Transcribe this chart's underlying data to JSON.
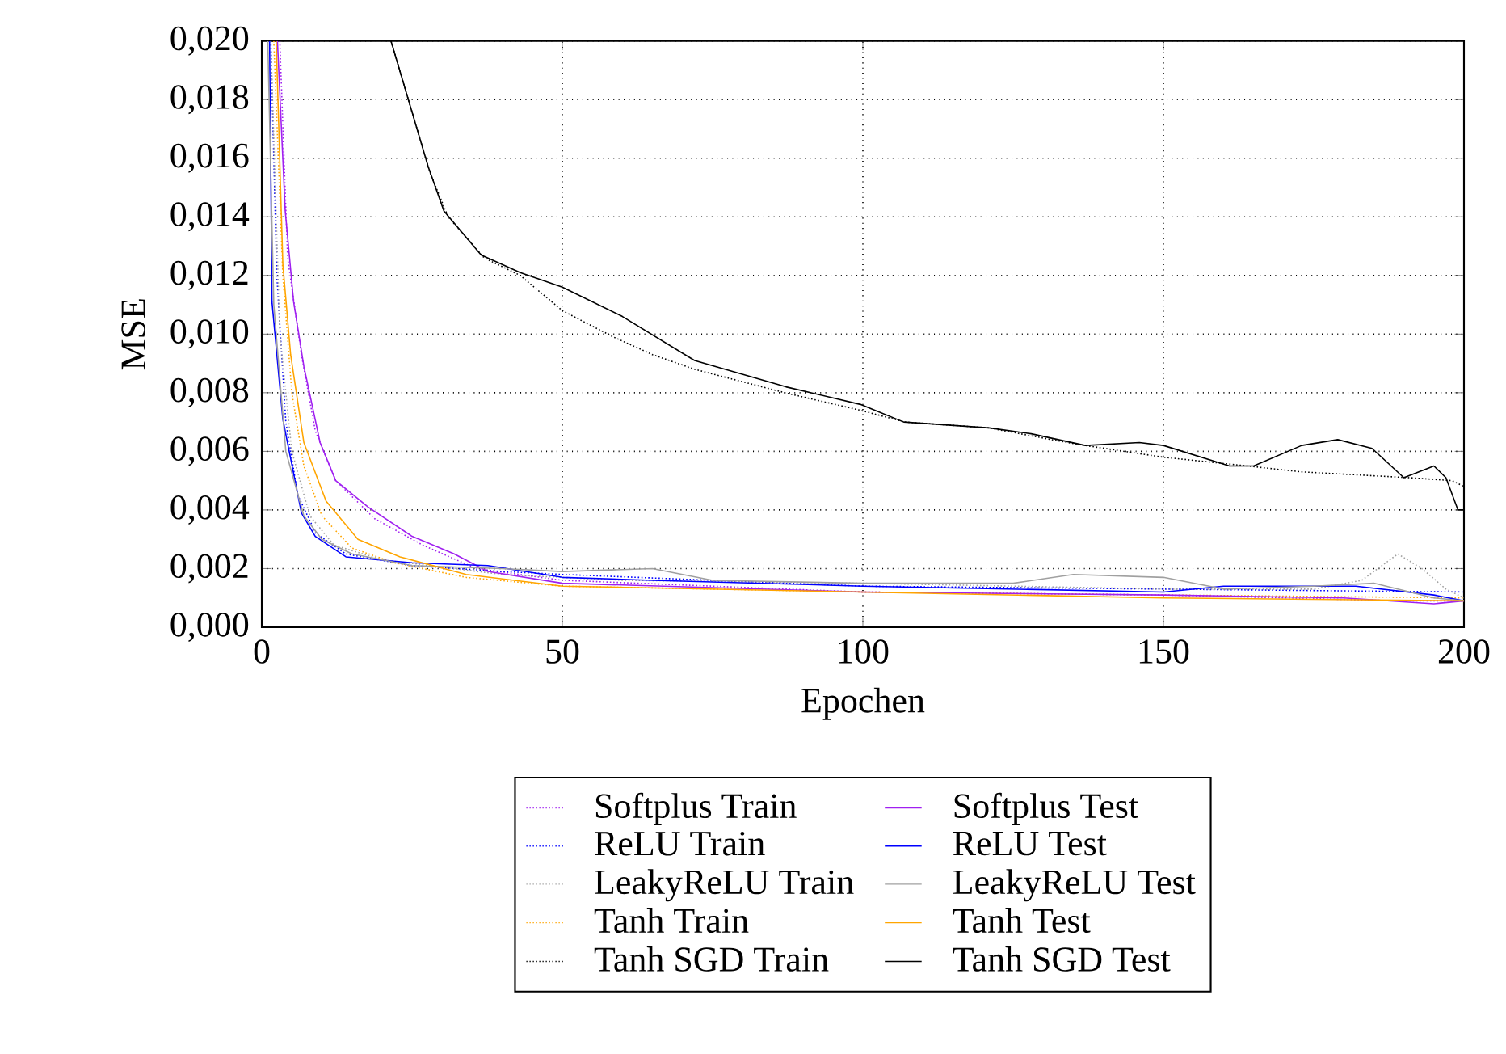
{
  "chart_data": {
    "type": "line",
    "xlabel": "Epochen",
    "ylabel": "MSE",
    "xlim": [
      0,
      200
    ],
    "ylim": [
      0,
      0.02
    ],
    "xticks": [
      0,
      50,
      100,
      150,
      200
    ],
    "yticks": [
      {
        "value": 0,
        "label": "0,000"
      },
      {
        "value": 0.002,
        "label": "0,002"
      },
      {
        "value": 0.004,
        "label": "0,004"
      },
      {
        "value": 0.006,
        "label": "0,006"
      },
      {
        "value": 0.008,
        "label": "0,008"
      },
      {
        "value": 0.01,
        "label": "0,010"
      },
      {
        "value": 0.012,
        "label": "0,012"
      },
      {
        "value": 0.014,
        "label": "0,014"
      },
      {
        "value": 0.016,
        "label": "0,016"
      },
      {
        "value": 0.018,
        "label": "0,018"
      },
      {
        "value": 0.02,
        "label": "0,020"
      }
    ],
    "grid": true,
    "legend": "bottom",
    "marker": "none",
    "series": [
      {
        "name": "Softplus Train",
        "color": "#a020f0",
        "line_style": "dotted",
        "x": [
          3,
          4.3,
          6.6,
          8.9,
          12.3,
          18.8,
          26.8,
          35.7,
          50,
          100,
          150,
          190,
          200
        ],
        "values": [
          0.02,
          0.0126,
          0.0093,
          0.0067,
          0.005,
          0.0037,
          0.0028,
          0.002,
          0.0016,
          0.0012,
          0.0011,
          0.0009,
          0.0009
        ]
      },
      {
        "name": "ReLU Train",
        "color": "#0000ff",
        "line_style": "dotted",
        "x": [
          1.5,
          2.5,
          4,
          6,
          9,
          14,
          25,
          40,
          50,
          100,
          150,
          200
        ],
        "values": [
          0.02,
          0.012,
          0.007,
          0.0045,
          0.0032,
          0.0025,
          0.0021,
          0.0019,
          0.0018,
          0.0014,
          0.0013,
          0.0012
        ]
      },
      {
        "name": "LeakyReLU Train",
        "color": "#a0a0a0",
        "line_style": "dotted",
        "x": [
          1.5,
          3,
          5,
          8,
          12,
          20,
          40,
          60,
          100,
          150,
          175,
          183,
          189,
          193,
          197,
          200
        ],
        "values": [
          0.02,
          0.01,
          0.006,
          0.0038,
          0.0028,
          0.0023,
          0.0018,
          0.0016,
          0.0015,
          0.0013,
          0.0013,
          0.0016,
          0.0025,
          0.002,
          0.0013,
          0.001
        ]
      },
      {
        "name": "Tanh Train",
        "color": "#ffa500",
        "line_style": "dotted",
        "x": [
          2,
          3.5,
          5,
          7,
          10,
          15,
          22,
          34,
          50,
          100,
          150,
          200
        ],
        "values": [
          0.02,
          0.012,
          0.008,
          0.0055,
          0.0038,
          0.0027,
          0.0022,
          0.0017,
          0.0014,
          0.0012,
          0.0011,
          0.001
        ]
      },
      {
        "name": "Tanh SGD Train",
        "color": "#000000",
        "line_style": "dotted",
        "x": [
          21.5,
          28,
          31,
          37,
          43,
          50,
          58.5,
          65,
          72,
          87,
          99.6,
          107,
          121,
          134,
          137,
          150,
          164,
          173,
          191,
          198,
          200
        ],
        "values": [
          0.02,
          0.0155,
          0.014,
          0.0126,
          0.012,
          0.0108,
          0.0099,
          0.0093,
          0.0088,
          0.008,
          0.0074,
          0.007,
          0.0068,
          0.0063,
          0.0062,
          0.0058,
          0.0055,
          0.0053,
          0.0051,
          0.005,
          0.0048
        ]
      },
      {
        "name": "Softplus Test",
        "color": "#a020f0",
        "line_style": "solid",
        "x": [
          2.6,
          3.9,
          5.3,
          7,
          9.7,
          12.3,
          17.7,
          25,
          32,
          37.6,
          50,
          100,
          150,
          180,
          195,
          200
        ],
        "values": [
          0.02,
          0.0142,
          0.0111,
          0.0089,
          0.0063,
          0.005,
          0.0041,
          0.0031,
          0.0025,
          0.0019,
          0.0015,
          0.0012,
          0.0011,
          0.001,
          0.0008,
          0.0009
        ]
      },
      {
        "name": "ReLU Test",
        "color": "#0000ff",
        "line_style": "solid",
        "x": [
          1.3,
          1.7,
          3.5,
          6.6,
          8.9,
          14,
          25,
          37.6,
          50,
          65,
          100,
          150,
          160,
          182,
          195,
          200
        ],
        "values": [
          0.02,
          0.0111,
          0.0071,
          0.0039,
          0.0031,
          0.0024,
          0.0022,
          0.0021,
          0.0017,
          0.0016,
          0.0014,
          0.0012,
          0.0014,
          0.0014,
          0.0011,
          0.0009
        ]
      },
      {
        "name": "LeakyReLU Test",
        "color": "#a0a0a0",
        "line_style": "solid",
        "x": [
          1,
          2,
          4,
          7,
          10,
          15,
          25,
          40,
          50,
          65,
          75,
          100,
          125,
          135,
          150,
          160,
          175,
          185,
          195,
          200
        ],
        "values": [
          0.02,
          0.011,
          0.006,
          0.0038,
          0.003,
          0.0025,
          0.0021,
          0.002,
          0.0019,
          0.002,
          0.0016,
          0.0015,
          0.0015,
          0.0018,
          0.0017,
          0.0013,
          0.0014,
          0.0015,
          0.001,
          0.0009
        ]
      },
      {
        "name": "Tanh Test",
        "color": "#ffa500",
        "line_style": "solid",
        "x": [
          2.4,
          3.5,
          4.8,
          7,
          10.7,
          16,
          23,
          34,
          50,
          100,
          150,
          200
        ],
        "values": [
          0.02,
          0.0124,
          0.0093,
          0.0063,
          0.0043,
          0.003,
          0.0024,
          0.0018,
          0.0014,
          0.0012,
          0.001,
          0.0009
        ]
      },
      {
        "name": "Tanh SGD Test",
        "color": "#000000",
        "line_style": "solid",
        "x": [
          21.5,
          27.7,
          30.3,
          36.5,
          43,
          50,
          60,
          72,
          87.2,
          99.6,
          106.8,
          121,
          128,
          137,
          146,
          150,
          161,
          165,
          173,
          179,
          184.7,
          190,
          195,
          197,
          199,
          200
        ],
        "values": [
          0.02,
          0.0157,
          0.0142,
          0.0127,
          0.0121,
          0.0116,
          0.0106,
          0.0091,
          0.0082,
          0.0076,
          0.007,
          0.0068,
          0.0066,
          0.0062,
          0.0063,
          0.0062,
          0.0055,
          0.0055,
          0.0062,
          0.0064,
          0.0061,
          0.0051,
          0.0055,
          0.0051,
          0.004,
          0.004
        ]
      }
    ]
  }
}
